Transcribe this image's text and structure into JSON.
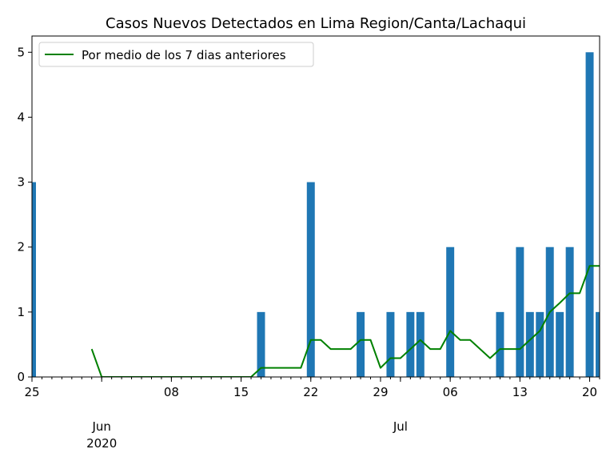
{
  "chart_data": {
    "type": "bar",
    "title": "Casos Nuevos Detectados en Lima Region/Canta/Lachaqui",
    "xlabel": "",
    "ylabel": "",
    "xlim": [
      "2020-05-25",
      "2020-07-21"
    ],
    "ylim": [
      0,
      5.25
    ],
    "yticks": [
      0,
      1,
      2,
      3,
      4,
      5
    ],
    "grid": false,
    "legend": {
      "position": "top-left",
      "entries": [
        "Por medio de los 7 dias anteriores"
      ]
    },
    "x_major_ticks": [
      {
        "date": "2020-05-25",
        "label": "25"
      },
      {
        "date": "2020-06-08",
        "label": "08"
      },
      {
        "date": "2020-06-15",
        "label": "15"
      },
      {
        "date": "2020-06-22",
        "label": "22"
      },
      {
        "date": "2020-06-29",
        "label": "29"
      },
      {
        "date": "2020-07-06",
        "label": "06"
      },
      {
        "date": "2020-07-13",
        "label": "13"
      },
      {
        "date": "2020-07-20",
        "label": "20"
      }
    ],
    "x_month_labels": [
      {
        "date": "2020-06-01",
        "label": "Jun",
        "sublabel": "2020"
      },
      {
        "date": "2020-07-01",
        "label": "Jul",
        "sublabel": ""
      }
    ],
    "bars": {
      "color": "#1f77b4",
      "points": [
        {
          "date": "2020-05-25",
          "value": 3
        },
        {
          "date": "2020-06-17",
          "value": 1
        },
        {
          "date": "2020-06-22",
          "value": 3
        },
        {
          "date": "2020-06-27",
          "value": 1
        },
        {
          "date": "2020-06-30",
          "value": 1
        },
        {
          "date": "2020-07-02",
          "value": 1
        },
        {
          "date": "2020-07-03",
          "value": 1
        },
        {
          "date": "2020-07-06",
          "value": 2
        },
        {
          "date": "2020-07-11",
          "value": 1
        },
        {
          "date": "2020-07-13",
          "value": 2
        },
        {
          "date": "2020-07-14",
          "value": 1
        },
        {
          "date": "2020-07-15",
          "value": 1
        },
        {
          "date": "2020-07-16",
          "value": 2
        },
        {
          "date": "2020-07-17",
          "value": 1
        },
        {
          "date": "2020-07-18",
          "value": 2
        },
        {
          "date": "2020-07-20",
          "value": 5
        },
        {
          "date": "2020-07-21",
          "value": 1
        }
      ]
    },
    "series": [
      {
        "name": "Por medio de los 7 dias anteriores",
        "color": "#008000",
        "points": [
          {
            "date": "2020-05-31",
            "value": 0.43
          },
          {
            "date": "2020-06-01",
            "value": 0
          },
          {
            "date": "2020-06-16",
            "value": 0
          },
          {
            "date": "2020-06-17",
            "value": 0.14
          },
          {
            "date": "2020-06-21",
            "value": 0.14
          },
          {
            "date": "2020-06-22",
            "value": 0.57
          },
          {
            "date": "2020-06-23",
            "value": 0.57
          },
          {
            "date": "2020-06-24",
            "value": 0.43
          },
          {
            "date": "2020-06-26",
            "value": 0.43
          },
          {
            "date": "2020-06-27",
            "value": 0.57
          },
          {
            "date": "2020-06-28",
            "value": 0.57
          },
          {
            "date": "2020-06-29",
            "value": 0.14
          },
          {
            "date": "2020-06-30",
            "value": 0.29
          },
          {
            "date": "2020-07-01",
            "value": 0.29
          },
          {
            "date": "2020-07-02",
            "value": 0.43
          },
          {
            "date": "2020-07-03",
            "value": 0.57
          },
          {
            "date": "2020-07-04",
            "value": 0.43
          },
          {
            "date": "2020-07-05",
            "value": 0.43
          },
          {
            "date": "2020-07-06",
            "value": 0.71
          },
          {
            "date": "2020-07-07",
            "value": 0.57
          },
          {
            "date": "2020-07-08",
            "value": 0.57
          },
          {
            "date": "2020-07-10",
            "value": 0.29
          },
          {
            "date": "2020-07-11",
            "value": 0.43
          },
          {
            "date": "2020-07-13",
            "value": 0.43
          },
          {
            "date": "2020-07-14",
            "value": 0.57
          },
          {
            "date": "2020-07-15",
            "value": 0.71
          },
          {
            "date": "2020-07-16",
            "value": 1.0
          },
          {
            "date": "2020-07-17",
            "value": 1.14
          },
          {
            "date": "2020-07-18",
            "value": 1.29
          },
          {
            "date": "2020-07-19",
            "value": 1.29
          },
          {
            "date": "2020-07-20",
            "value": 1.71
          },
          {
            "date": "2020-07-21",
            "value": 1.71
          }
        ]
      }
    ]
  }
}
